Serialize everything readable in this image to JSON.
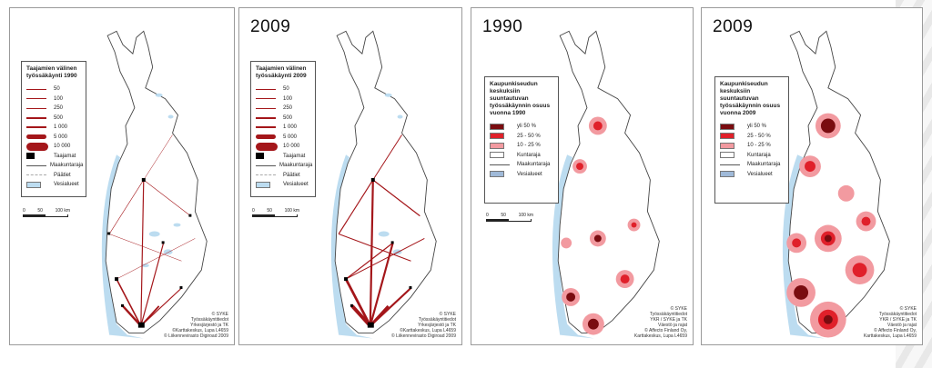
{
  "panels": [
    {
      "year": "",
      "legend": {
        "title": "Taajamien välinen työssäkäynti 1990",
        "flow_classes": [
          "50",
          "100",
          "250",
          "500",
          "1 000",
          "5 000",
          "10 000"
        ],
        "items": [
          "Taajamat",
          "Maakuntaraja",
          "Päätiet",
          "Vesialueet"
        ]
      },
      "scale": [
        "0",
        "50",
        "100 km"
      ],
      "credit": [
        "© SYKE",
        "Työssäkäyntitiedot",
        "Yrkesjärjestö ja TK",
        "©Karttakeskus, Lupa L4659",
        "© Liikennevirasto Digiroad 2009"
      ]
    },
    {
      "year": "2009",
      "legend": {
        "title": "Taajamien välinen työssäkäynti 2009",
        "flow_classes": [
          "50",
          "100",
          "250",
          "500",
          "1 000",
          "5 000",
          "10 000"
        ],
        "items": [
          "Taajamat",
          "Maakuntaraja",
          "Päätiet",
          "Vesialueet"
        ]
      },
      "scale": [
        "0",
        "50",
        "100 km"
      ],
      "credit": [
        "© SYKE",
        "Työssäkäyntitiedot",
        "Yrkesjärjestö ja TK",
        "©Karttakeskus, Lupa L4659",
        "© Liikennevirasto Digiroad 2009"
      ]
    },
    {
      "year": "1990",
      "legend": {
        "title": "Kaupunkiseudun keskuksiin suuntautuvan työssäkäynnin osuus vuonna 1990",
        "classes": [
          "yli 50 %",
          "25 - 50 %",
          "10 - 25 %"
        ],
        "items": [
          "Kuntaraja",
          "Maakuntaraja",
          "Vesialueet"
        ]
      },
      "scale": [
        "0",
        "50",
        "100 km"
      ],
      "credit": [
        "© SYKE",
        "Työssäkäyntitiedot",
        "YKR / SYKE ja TK",
        "Väestö ja rajat",
        "© Affecto Finland Oy,",
        "Karttakeskus, Lupa L4659"
      ]
    },
    {
      "year": "2009",
      "legend": {
        "title": "Kaupunkiseudun keskuksiin suuntautuvan työssäkäynnin osuus vuonna 2009",
        "classes": [
          "yli 50 %",
          "25 - 50 %",
          "10 - 25 %"
        ],
        "items": [
          "Kuntaraja",
          "Maakuntaraja",
          "Vesialueet"
        ]
      },
      "scale": [],
      "credit": [
        "© SYKE",
        "Työssäkäyntitiedot",
        "YKR / SYKE ja TK",
        "Väestö ja rajat",
        "© Affecto Finland Oy,",
        "Karttakeskus, Lupa L4659"
      ]
    }
  ],
  "colors": {
    "flow": "#a4161a",
    "class_high": "#7a0c10",
    "class_mid": "#e0202a",
    "class_low": "#f29aa0",
    "water": "#bcdcf0",
    "land": "#ffffff"
  }
}
